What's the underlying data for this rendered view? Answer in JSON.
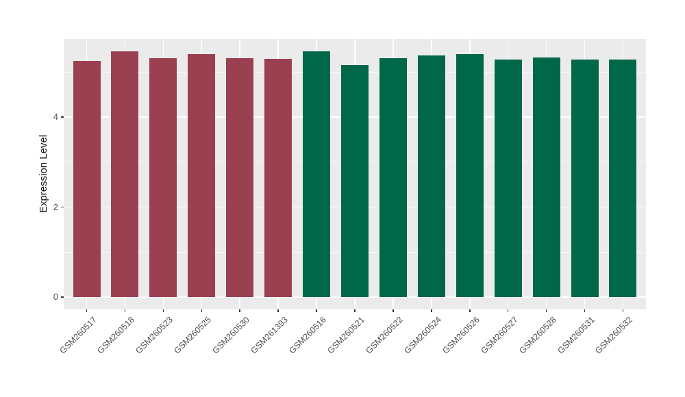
{
  "chart_data": {
    "type": "bar",
    "title": "",
    "xlabel": "",
    "ylabel": "Expression Level",
    "categories": [
      "GSM260517",
      "GSM260518",
      "GSM260523",
      "GSM260525",
      "GSM260530",
      "GSM261393",
      "GSM260516",
      "GSM260521",
      "GSM260522",
      "GSM260524",
      "GSM260526",
      "GSM260527",
      "GSM260528",
      "GSM260531",
      "GSM260532"
    ],
    "values": [
      5.25,
      5.45,
      5.3,
      5.4,
      5.31,
      5.29,
      5.46,
      5.15,
      5.3,
      5.36,
      5.4,
      5.27,
      5.32,
      5.28,
      5.28
    ],
    "bar_colors": [
      "#9B4050",
      "#9B4050",
      "#9B4050",
      "#9B4050",
      "#9B4050",
      "#9B4050",
      "#006849",
      "#006849",
      "#006849",
      "#006849",
      "#006849",
      "#006849",
      "#006849",
      "#006849",
      "#006849"
    ],
    "color_legend_note": "no legend shown",
    "yticks": [
      0,
      2,
      4
    ],
    "minor_yticks": [
      1,
      3,
      5
    ],
    "ylim": [
      -0.27,
      5.73
    ],
    "grid": true,
    "legend_position": "none",
    "x_tick_angle": 45,
    "colors": {
      "panel_bg": "#EBEBEB",
      "grid": "#FFFFFF",
      "axis_text": "#4D4D4D",
      "tick_mark": "#333333",
      "bar_group_left": "#9B4050",
      "bar_group_right": "#006849"
    }
  }
}
